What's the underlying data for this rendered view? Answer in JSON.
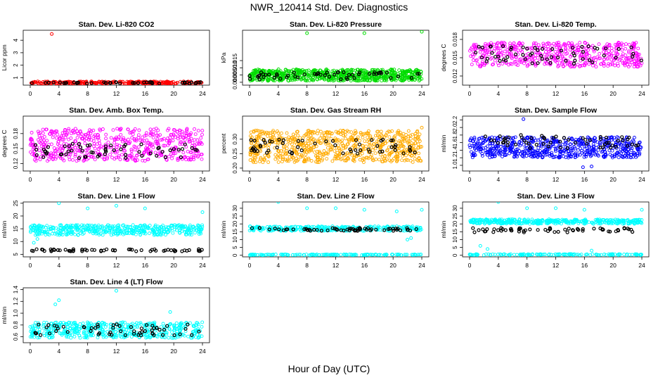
{
  "figure": {
    "title": "NWR_120414  Std. Dev. Diagnostics",
    "xlabel": "Hour of Day (UTC)"
  },
  "colors": {
    "red": "#ff0000",
    "green": "#00dd00",
    "magenta": "#ff00ff",
    "orange": "#ffaa00",
    "blue": "#0000ff",
    "cyan": "#00ffff",
    "black": "#000000"
  },
  "chart_data": [
    {
      "type": "scatter",
      "title": "Stan. Dev. Li-820 CO2",
      "ylabel": "Licor ppm",
      "xlim": [
        0,
        24
      ],
      "xticks": [
        "0",
        "4",
        "8",
        "12",
        "16",
        "20",
        "24"
      ],
      "ylim": [
        0.4,
        4.8
      ],
      "yticks": [
        1,
        2,
        3,
        4
      ],
      "ytick_labels": [
        "1",
        "2",
        "3",
        "4"
      ],
      "grid": false,
      "color": "red",
      "series": [
        {
          "band": [
            0.5,
            0.7
          ],
          "count": 280
        },
        {
          "band": [
            0.52,
            0.65
          ],
          "count": 45,
          "color": "black"
        }
      ],
      "outliers": [
        [
          3.0,
          4.5
        ]
      ]
    },
    {
      "type": "scatter",
      "title": "Stan. Dev. Li-820 Pressure",
      "ylabel": "kPa",
      "xlim": [
        0,
        24
      ],
      "xticks": [
        "0",
        "4",
        "8",
        "12",
        "16",
        "20",
        "24"
      ],
      "ylim": [
        -0.002,
        0.036
      ],
      "yticks": [
        0.0,
        0.005,
        0.01,
        0.015
      ],
      "ytick_labels": [
        "0.000",
        "0.005",
        "0.010",
        "0.015"
      ],
      "grid": false,
      "color": "green",
      "series": [
        {
          "band": [
            0.001,
            0.009
          ],
          "count": 700
        },
        {
          "band": [
            0.002,
            0.007
          ],
          "count": 55,
          "color": "black"
        }
      ],
      "outliers": [
        [
          8.0,
          0.034
        ],
        [
          16.0,
          0.034
        ],
        [
          24.0,
          0.035
        ]
      ]
    },
    {
      "type": "scatter",
      "title": "Stan. Dev. Li-820 Temp.",
      "ylabel": "degrees C",
      "xlim": [
        0,
        24
      ],
      "xticks": [
        "0",
        "4",
        "8",
        "12",
        "16",
        "20",
        "24"
      ],
      "ylim": [
        0.0105,
        0.0195
      ],
      "yticks": [
        0.012,
        0.015,
        0.018
      ],
      "ytick_labels": [
        "0.012",
        "0.015",
        "0.018"
      ],
      "grid": false,
      "color": "magenta",
      "series": [
        {
          "band": [
            0.0135,
            0.0175
          ],
          "count": 500
        },
        {
          "band": [
            0.014,
            0.017
          ],
          "count": 60,
          "color": "black"
        }
      ],
      "outliers": []
    },
    {
      "type": "scatter",
      "title": "Stan. Dev. Amb. Box Temp.",
      "ylabel": "degrees C",
      "xlim": [
        0,
        24
      ],
      "xticks": [
        "0",
        "4",
        "8",
        "12",
        "16",
        "20",
        "24"
      ],
      "ylim": [
        0.105,
        0.215
      ],
      "yticks": [
        0.12,
        0.15,
        0.18
      ],
      "ytick_labels": [
        "0.12",
        "0.15",
        "0.18"
      ],
      "grid": false,
      "color": "magenta",
      "series": [
        {
          "band": [
            0.125,
            0.19
          ],
          "count": 550
        },
        {
          "band": [
            0.13,
            0.16
          ],
          "count": 60,
          "color": "black"
        }
      ],
      "outliers": []
    },
    {
      "type": "scatter",
      "title": "Stan. Dev. Gas Stream RH",
      "ylabel": "percent",
      "xlim": [
        0,
        24
      ],
      "xticks": [
        "0",
        "4",
        "8",
        "12",
        "16",
        "20",
        "24"
      ],
      "ylim": [
        0.19,
        0.38
      ],
      "yticks": [
        0.2,
        0.25,
        0.3
      ],
      "ytick_labels": [
        "0.20",
        "0.25",
        "0.30"
      ],
      "grid": false,
      "color": "orange",
      "series": [
        {
          "band": [
            0.22,
            0.33
          ],
          "count": 700
        },
        {
          "band": [
            0.25,
            0.3
          ],
          "count": 60,
          "color": "black"
        }
      ],
      "outliers": [
        [
          24.0,
          0.34
        ]
      ]
    },
    {
      "type": "scatter",
      "title": "Stan. Dev. Sample Flow",
      "ylabel": "ml/min",
      "xlim": [
        0,
        24
      ],
      "xticks": [
        "0",
        "4",
        "8",
        "12",
        "16",
        "20",
        "24"
      ],
      "ylim": [
        0.85,
        2.3
      ],
      "yticks": [
        1.0,
        1.2,
        1.4,
        1.6,
        1.8,
        2.0,
        2.2
      ],
      "ytick_labels": [
        "1.0",
        "1.2",
        "1.4",
        "1.6",
        "1.8",
        "2.0",
        "2.2"
      ],
      "grid": false,
      "color": "blue",
      "series": [
        {
          "band": [
            1.2,
            1.75
          ],
          "count": 600
        },
        {
          "band": [
            1.45,
            1.8
          ],
          "count": 60,
          "color": "black"
        }
      ],
      "outliers": [
        [
          7.5,
          2.22
        ],
        [
          15.8,
          0.95
        ],
        [
          17.0,
          0.97
        ]
      ]
    },
    {
      "type": "scatter",
      "title": "Stan. Dev. Line 1 Flow",
      "ylabel": "ml/min",
      "xlim": [
        0,
        24
      ],
      "xticks": [
        "0",
        "4",
        "8",
        "12",
        "16",
        "20",
        "24"
      ],
      "ylim": [
        4,
        25.5
      ],
      "yticks": [
        5,
        10,
        15,
        20,
        25
      ],
      "ytick_labels": [
        "5",
        "10",
        "15",
        "20",
        "25"
      ],
      "grid": false,
      "color": "cyan",
      "series": [
        {
          "band": [
            12.5,
            16.5
          ],
          "count": 450
        },
        {
          "band": [
            6.2,
            7.0
          ],
          "count": 60,
          "color": "black"
        }
      ],
      "outliers": [
        [
          4.0,
          25.0
        ],
        [
          8.0,
          23.0
        ],
        [
          12.0,
          24.0
        ],
        [
          16.0,
          23.0
        ],
        [
          24.0,
          21.5
        ],
        [
          0.5,
          9.5
        ],
        [
          1.0,
          11.0
        ]
      ]
    },
    {
      "type": "scatter",
      "title": "Stan. Dev. Line 2 Flow",
      "ylabel": "ml/min",
      "xlim": [
        0,
        24
      ],
      "xticks": [
        "0",
        "4",
        "8",
        "12",
        "16",
        "20",
        "24"
      ],
      "ylim": [
        -1,
        34
      ],
      "yticks": [
        0,
        5,
        10,
        15,
        20,
        25,
        30
      ],
      "ytick_labels": [
        "0",
        "5",
        "10",
        "15",
        "20",
        "25",
        "30"
      ],
      "grid": false,
      "color": "cyan",
      "series": [
        {
          "band": [
            15.5,
            18.5
          ],
          "count": 300
        },
        {
          "band": [
            0.1,
            0.6
          ],
          "count": 150
        },
        {
          "band": [
            15.5,
            17.5
          ],
          "count": 60,
          "color": "black"
        }
      ],
      "outliers": [
        [
          4.0,
          34.0
        ],
        [
          8.0,
          30.0
        ],
        [
          12.0,
          30.0
        ],
        [
          16.0,
          29.0
        ],
        [
          20.5,
          28.0
        ],
        [
          24.0,
          29.0
        ],
        [
          22.0,
          10.0
        ],
        [
          22.5,
          11.0
        ]
      ]
    },
    {
      "type": "scatter",
      "title": "Stan. Dev. Line 3 Flow",
      "ylabel": "ml/min",
      "xlim": [
        0,
        24
      ],
      "xticks": [
        "0",
        "4",
        "8",
        "12",
        "16",
        "20",
        "24"
      ],
      "ylim": [
        -1,
        34
      ],
      "yticks": [
        0,
        5,
        10,
        15,
        20,
        25,
        30
      ],
      "ytick_labels": [
        "0",
        "5",
        "10",
        "15",
        "20",
        "25",
        "30"
      ],
      "grid": false,
      "color": "cyan",
      "series": [
        {
          "band": [
            20.0,
            23.0
          ],
          "count": 400
        },
        {
          "band": [
            0.1,
            0.8
          ],
          "count": 150
        },
        {
          "band": [
            14.5,
            17.5
          ],
          "count": 60,
          "color": "black"
        }
      ],
      "outliers": [
        [
          4.0,
          34.0
        ],
        [
          8.0,
          30.0
        ],
        [
          12.0,
          30.0
        ],
        [
          16.0,
          29.0
        ],
        [
          24.0,
          29.0
        ],
        [
          1.5,
          6.0
        ],
        [
          2.5,
          4.0
        ],
        [
          17.0,
          3.0
        ]
      ]
    },
    {
      "type": "scatter",
      "title": "Stan. Dev. Line 4 (LT) Flow",
      "ylabel": "ml/min",
      "xlim": [
        0,
        24
      ],
      "xticks": [
        "0",
        "4",
        "8",
        "12",
        "16",
        "20",
        "24"
      ],
      "ylim": [
        0.5,
        1.43
      ],
      "yticks": [
        0.6,
        0.8,
        1.0,
        1.2,
        1.4
      ],
      "ytick_labels": [
        "0.6",
        "0.8",
        "1.0",
        "1.2",
        "1.4"
      ],
      "grid": false,
      "color": "cyan",
      "series": [
        {
          "band": [
            0.58,
            0.85
          ],
          "count": 500
        },
        {
          "band": [
            0.62,
            0.82
          ],
          "count": 60,
          "color": "black"
        }
      ],
      "outliers": [
        [
          12.0,
          1.38
        ],
        [
          3.5,
          1.15
        ],
        [
          4.0,
          1.22
        ],
        [
          19.5,
          1.02
        ]
      ]
    }
  ]
}
